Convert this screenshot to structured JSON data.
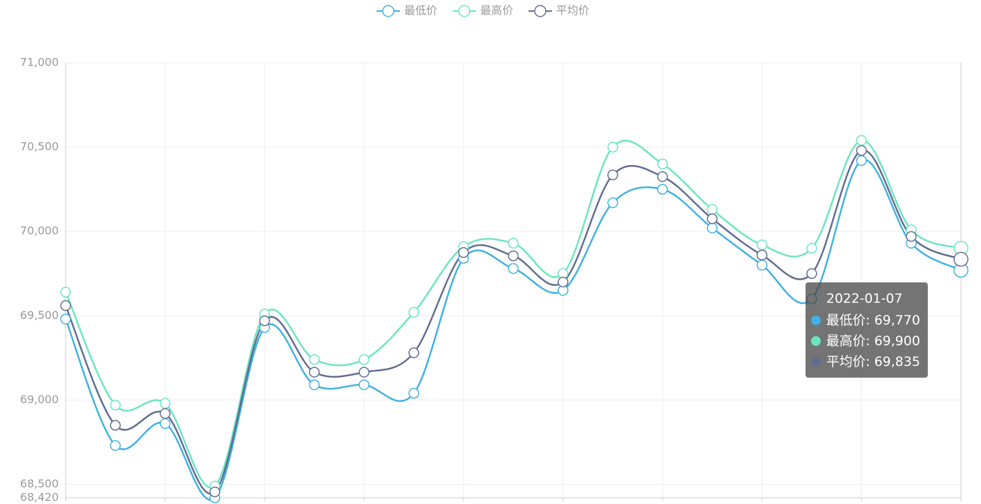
{
  "chart_data": {
    "type": "line",
    "categories": [
      null,
      null,
      null,
      null,
      null,
      null,
      null,
      null,
      null,
      null,
      null,
      null,
      null,
      null,
      null,
      null,
      null,
      null,
      "2022-01-07"
    ],
    "series": [
      {
        "name": "最低价",
        "color": "#3fb1e3",
        "values": [
          69480,
          68730,
          68860,
          68420,
          69430,
          69090,
          69090,
          69040,
          69840,
          69780,
          69650,
          70170,
          70250,
          70020,
          69800,
          69600,
          70420,
          69930,
          69770
        ],
        "value_labels": [
          null,
          null,
          null,
          null,
          null,
          null,
          null,
          null,
          null,
          null,
          null,
          null,
          null,
          null,
          null,
          null,
          null,
          null,
          "69,770"
        ]
      },
      {
        "name": "最高价",
        "color": "#6be6c1",
        "values": [
          69640,
          68970,
          68980,
          68490,
          69510,
          69240,
          69240,
          69520,
          69910,
          69930,
          69750,
          70500,
          70400,
          70130,
          69920,
          69900,
          70540,
          70010,
          69900
        ],
        "value_labels": [
          null,
          null,
          null,
          null,
          null,
          null,
          null,
          null,
          null,
          null,
          null,
          null,
          null,
          null,
          null,
          null,
          null,
          null,
          "69,900"
        ]
      },
      {
        "name": "平均价",
        "color": "#626c91",
        "values": [
          69560,
          68850,
          68920,
          68455,
          69470,
          69165,
          69165,
          69280,
          69875,
          69855,
          69700,
          70335,
          70325,
          70075,
          69860,
          69750,
          70480,
          69970,
          69835
        ],
        "value_labels": [
          null,
          null,
          null,
          null,
          null,
          null,
          null,
          null,
          null,
          null,
          null,
          null,
          null,
          null,
          null,
          null,
          null,
          null,
          "69,835"
        ]
      }
    ],
    "ylim": [
      68420,
      71000
    ],
    "yticks": [
      {
        "value": 68420,
        "label": "68,420"
      },
      {
        "value": 68500,
        "label": "68,500"
      },
      {
        "value": 69000,
        "label": "69,000"
      },
      {
        "value": 69500,
        "label": "69,500"
      },
      {
        "value": 70000,
        "label": "70,000"
      },
      {
        "value": 70500,
        "label": "70,500"
      },
      {
        "value": 71000,
        "label": "71,000"
      }
    ],
    "grid": true,
    "legend": "top",
    "tooltip": {
      "separator": ": "
    }
  }
}
